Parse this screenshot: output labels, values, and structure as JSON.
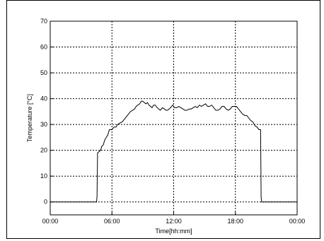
{
  "chart_data": {
    "type": "line",
    "title": "",
    "xlabel": "Time[hh:mm]",
    "ylabel": "Temperature [°C]",
    "xlim": [
      0,
      24
    ],
    "ylim": [
      -5,
      70
    ],
    "grid": true,
    "x_ticks": [
      {
        "value": 0,
        "label": "00:00"
      },
      {
        "value": 6,
        "label": "06:00"
      },
      {
        "value": 12,
        "label": "12:00"
      },
      {
        "value": 18,
        "label": "18:00"
      },
      {
        "value": 24,
        "label": "00:00"
      }
    ],
    "y_ticks": [
      0,
      10,
      20,
      30,
      40,
      50,
      60,
      70
    ],
    "series": [
      {
        "color": "#000000",
        "points": [
          [
            0.0,
            0
          ],
          [
            4.5,
            0
          ],
          [
            4.55,
            2
          ],
          [
            4.6,
            19
          ],
          [
            4.75,
            19.5
          ],
          [
            4.9,
            20
          ],
          [
            5.0,
            21.5
          ],
          [
            5.15,
            22
          ],
          [
            5.3,
            24
          ],
          [
            5.45,
            25
          ],
          [
            5.6,
            26
          ],
          [
            5.75,
            28
          ],
          [
            6.0,
            28
          ],
          [
            6.2,
            29
          ],
          [
            6.4,
            29
          ],
          [
            6.55,
            30
          ],
          [
            6.75,
            30.5
          ],
          [
            7.0,
            31
          ],
          [
            7.2,
            32
          ],
          [
            7.4,
            33
          ],
          [
            7.6,
            34
          ],
          [
            7.8,
            35
          ],
          [
            8.0,
            35.5
          ],
          [
            8.2,
            36
          ],
          [
            8.35,
            37
          ],
          [
            8.5,
            37.5
          ],
          [
            8.7,
            38
          ],
          [
            8.85,
            39
          ],
          [
            9.0,
            39
          ],
          [
            9.15,
            38.5
          ],
          [
            9.3,
            38
          ],
          [
            9.45,
            38.5
          ],
          [
            9.6,
            37.5
          ],
          [
            9.75,
            37
          ],
          [
            9.9,
            36.5
          ],
          [
            10.05,
            37.5
          ],
          [
            10.2,
            37.5
          ],
          [
            10.4,
            36.5
          ],
          [
            10.55,
            36
          ],
          [
            10.7,
            35.5
          ],
          [
            10.9,
            36.5
          ],
          [
            11.1,
            36
          ],
          [
            11.25,
            35.5
          ],
          [
            11.4,
            35.5
          ],
          [
            11.55,
            36
          ],
          [
            11.7,
            36.5
          ],
          [
            11.9,
            37.5
          ],
          [
            12.1,
            36.5
          ],
          [
            12.3,
            36.5
          ],
          [
            12.5,
            37
          ],
          [
            12.7,
            36.5
          ],
          [
            12.9,
            36
          ],
          [
            13.1,
            35.5
          ],
          [
            13.3,
            35.5
          ],
          [
            13.5,
            36
          ],
          [
            13.7,
            36
          ],
          [
            13.9,
            36.5
          ],
          [
            14.1,
            37
          ],
          [
            14.3,
            36.5
          ],
          [
            14.5,
            37.5
          ],
          [
            14.7,
            37
          ],
          [
            14.9,
            37.5
          ],
          [
            15.1,
            38
          ],
          [
            15.3,
            37
          ],
          [
            15.5,
            37
          ],
          [
            15.7,
            37.5
          ],
          [
            15.9,
            36.5
          ],
          [
            16.1,
            35.5
          ],
          [
            16.3,
            35.5
          ],
          [
            16.5,
            36
          ],
          [
            16.7,
            37
          ],
          [
            16.9,
            37
          ],
          [
            17.1,
            36
          ],
          [
            17.3,
            35.5
          ],
          [
            17.5,
            36
          ],
          [
            17.7,
            37
          ],
          [
            17.9,
            37
          ],
          [
            18.1,
            37
          ],
          [
            18.3,
            36
          ],
          [
            18.5,
            35
          ],
          [
            18.7,
            34
          ],
          [
            18.9,
            33.5
          ],
          [
            19.1,
            33.5
          ],
          [
            19.3,
            32.5
          ],
          [
            19.5,
            31.5
          ],
          [
            19.7,
            31
          ],
          [
            19.9,
            29.5
          ],
          [
            20.1,
            29
          ],
          [
            20.3,
            28
          ],
          [
            20.45,
            28
          ],
          [
            20.5,
            2
          ],
          [
            20.55,
            0
          ],
          [
            24.0,
            0
          ]
        ]
      }
    ]
  }
}
